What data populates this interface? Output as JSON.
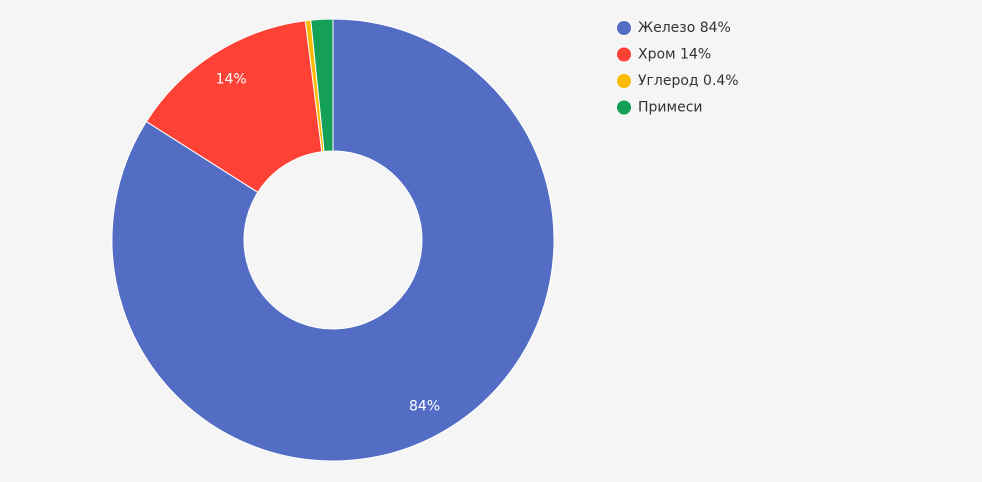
{
  "chart_data": {
    "type": "donut",
    "categories": [
      "Железо 84%",
      "Хром 14%",
      "Углерод 0.4%",
      "Примеси"
    ],
    "values": [
      84,
      14,
      0.4,
      1.6
    ],
    "value_labels": [
      "84%",
      "14%",
      null,
      null
    ],
    "colors": [
      "#536dc5",
      "#fd4235",
      "#fdb900",
      "#14a056"
    ],
    "legend": "top-right"
  }
}
